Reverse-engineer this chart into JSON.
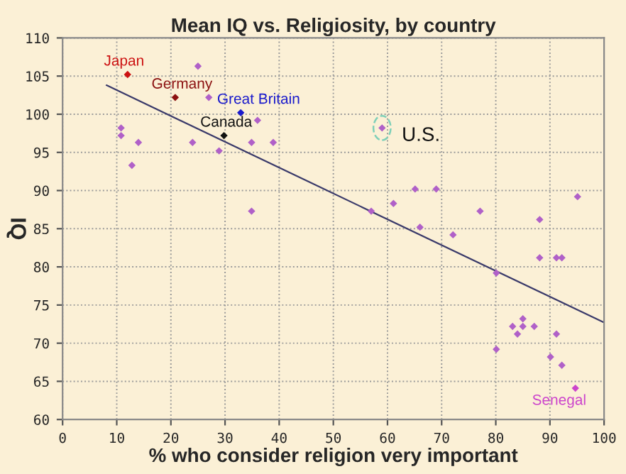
{
  "chart_data": {
    "type": "scatter",
    "title": "Mean IQ vs. Religiosity, by country",
    "xlabel": "% who consider religion very important",
    "ylabel": "IQ",
    "xlim": [
      0,
      100
    ],
    "ylim": [
      60,
      110
    ],
    "xticks": [
      0,
      10,
      20,
      30,
      40,
      50,
      60,
      70,
      80,
      90,
      100
    ],
    "yticks": [
      60,
      65,
      70,
      75,
      80,
      85,
      90,
      95,
      100,
      105,
      110
    ],
    "grid": true,
    "marker": "diamond",
    "legend": false,
    "series": [
      {
        "color": "#b060c8",
        "x": [
          25,
          27,
          36,
          10.8,
          10.8,
          14,
          12.8,
          24,
          28.9,
          34.9,
          38.9,
          34.9,
          59,
          57,
          61.1,
          65.1,
          69,
          77.1,
          95.1,
          66,
          72.1,
          88.1,
          88.1,
          91.2,
          92.2,
          80.1,
          83.1,
          85,
          85,
          87.1,
          84,
          91.2,
          80.1,
          90.1,
          92.2
        ],
        "values": [
          106.3,
          102.2,
          99.2,
          98.2,
          97.2,
          96.3,
          93.3,
          96.3,
          95.2,
          96.3,
          96.3,
          87.3,
          98.2,
          87.3,
          88.3,
          90.2,
          90.2,
          87.3,
          89.2,
          85.2,
          84.2,
          86.2,
          81.2,
          81.2,
          81.2,
          79.2,
          72.2,
          73.2,
          72.2,
          72.2,
          71.2,
          71.2,
          69.2,
          68.2,
          67.1
        ]
      },
      {
        "name": "Japan",
        "color": "#cc1111",
        "x": [
          12
        ],
        "values": [
          105.2
        ]
      },
      {
        "name": "Germany",
        "color": "#8b1010",
        "x": [
          20.8
        ],
        "values": [
          102.2
        ]
      },
      {
        "name": "Great Britain",
        "color": "#1a1acc",
        "x": [
          32.9
        ],
        "values": [
          100.2
        ]
      },
      {
        "name": "Canada",
        "color": "#111111",
        "x": [
          29.8
        ],
        "values": [
          97.2
        ]
      },
      {
        "name": "Senegal",
        "color": "#cc44cc",
        "x": [
          94.7
        ],
        "values": [
          64.1
        ]
      },
      {
        "type": "line",
        "color": "#3a3a6a",
        "marker": "none",
        "x": [
          8.1,
          100
        ],
        "values": [
          103.8,
          72.7
        ]
      }
    ],
    "annotations": [
      {
        "text": "U.S.",
        "x": 59,
        "y": 98.2
      }
    ]
  }
}
